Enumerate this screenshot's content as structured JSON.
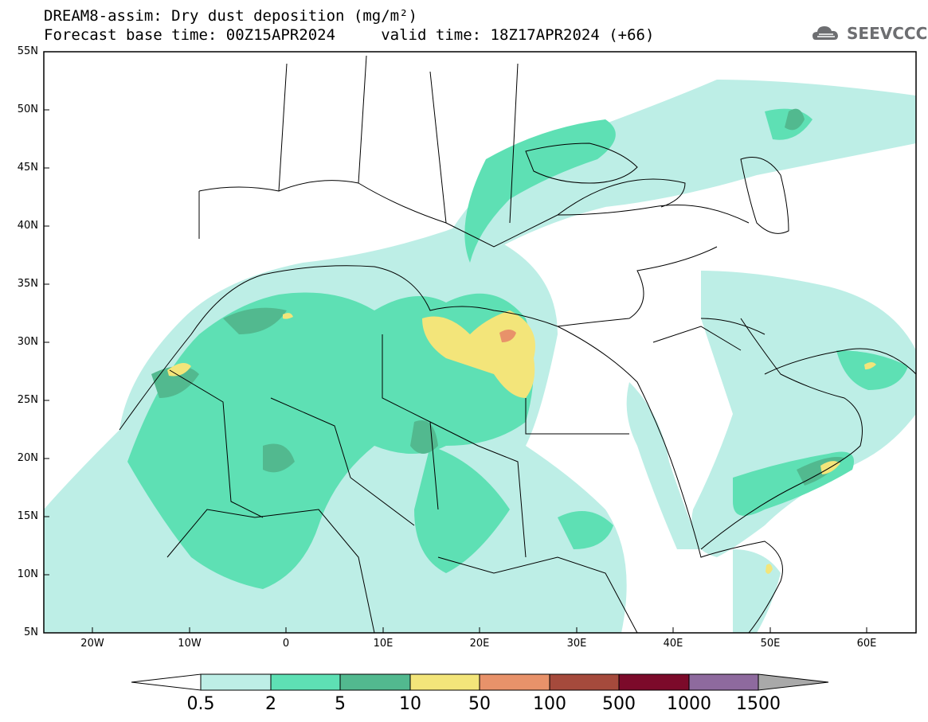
{
  "title": {
    "line1": "DREAM8-assim: Dry dust deposition (mg/m²)",
    "line2": "Forecast base time: 00Z15APR2024     valid time: 18Z17APR2024 (+66)"
  },
  "logo": {
    "text": "SEEVCCC",
    "icon": "cloud-logo-icon"
  },
  "map": {
    "region": "North Africa, Europe, Middle East",
    "lon_range": [
      -25,
      65
    ],
    "lat_range": [
      5,
      55
    ],
    "lat_labels": [
      "55N",
      "50N",
      "45N",
      "40N",
      "35N",
      "30N",
      "25N",
      "20N",
      "15N",
      "10N",
      "5N"
    ],
    "lon_labels": [
      "20W",
      "10W",
      "0",
      "10E",
      "20E",
      "30E",
      "40E",
      "50E",
      "60E"
    ]
  },
  "colorbar": {
    "labels": [
      "0.5",
      "2",
      "5",
      "10",
      "50",
      "100",
      "500",
      "1000",
      "1500"
    ],
    "colors": [
      "#bdeee6",
      "#5ee0b4",
      "#52b98f",
      "#f3e57a",
      "#e8926a",
      "#a54a3c",
      "#7c0a2a",
      "#8e6a9e"
    ],
    "under_color": "#ffffff",
    "over_color": "#a9a9a9"
  }
}
